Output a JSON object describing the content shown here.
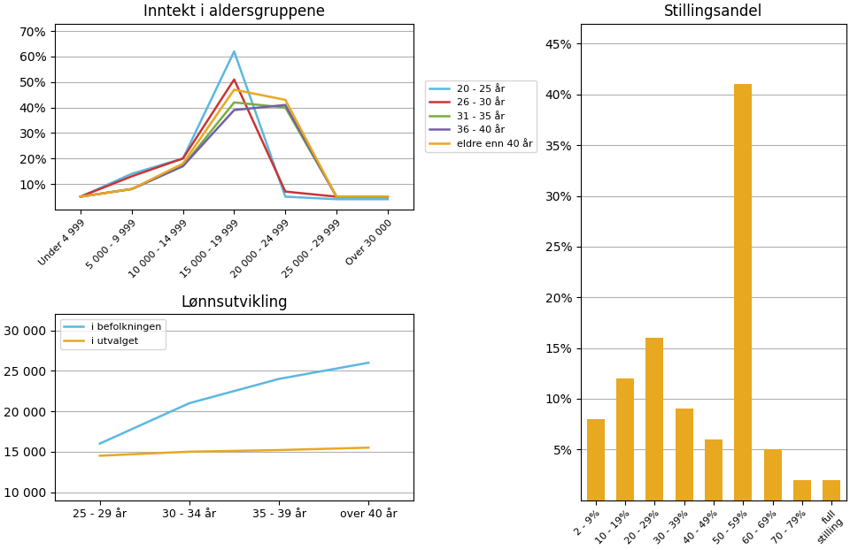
{
  "chart_data": [
    {
      "type": "line",
      "title": "Inntekt i aldersgruppene",
      "categories": [
        "Under 4 999",
        "5 000 - 9 999",
        "10 000 - 14 999",
        "15 000 - 19 999",
        "20 000 - 24 999",
        "25 000 - 29 999",
        "Over 30 000"
      ],
      "series": [
        {
          "name": "20 - 25 år",
          "color": "#5BB8E0",
          "values": [
            5,
            14,
            20,
            62,
            5,
            4,
            4
          ]
        },
        {
          "name": "26 - 30 år",
          "color": "#CC3333",
          "values": [
            5,
            13,
            20,
            51,
            7,
            5,
            5
          ]
        },
        {
          "name": "31 - 35 år",
          "color": "#7AAD3C",
          "values": [
            5,
            8,
            17,
            42,
            40,
            5,
            5
          ]
        },
        {
          "name": "36 - 40 år",
          "color": "#7060A8",
          "values": [
            5,
            8,
            17,
            39,
            41,
            5,
            5
          ]
        },
        {
          "name": "eldre enn 40 år",
          "color": "#E8A820",
          "values": [
            5,
            8,
            18,
            47,
            43,
            5,
            5
          ]
        }
      ],
      "ylim": [
        0,
        73
      ],
      "yticks": [
        {
          "value": 10,
          "label": "10%"
        },
        {
          "value": 20,
          "label": "20%"
        },
        {
          "value": 30,
          "label": "30%"
        },
        {
          "value": 40,
          "label": "40%"
        },
        {
          "value": 50,
          "label": "50%"
        },
        {
          "value": 60,
          "label": "60%"
        },
        {
          "value": 70,
          "label": "70%"
        }
      ],
      "grid": true,
      "legend": "center left"
    },
    {
      "type": "line",
      "title": "Lønnsutvikling",
      "categories": [
        "25 - 29 år",
        "30 - 34 år",
        "35 - 39 år",
        "over 40 år"
      ],
      "series": [
        {
          "name": "i befolkningen",
          "color": "#5BB8E0",
          "values": [
            16000,
            21000,
            24000,
            26000
          ]
        },
        {
          "name": "i utvalget",
          "color": "#E8A820",
          "values": [
            14500,
            15000,
            15200,
            15500
          ]
        }
      ],
      "ylim": [
        9000,
        32000
      ],
      "yticks": [
        {
          "value": 10000,
          "label": "10 000"
        },
        {
          "value": 15000,
          "label": "15 000"
        },
        {
          "value": 20000,
          "label": "20 000"
        },
        {
          "value": 25000,
          "label": "25 000"
        },
        {
          "value": 30000,
          "label": "30 000"
        }
      ],
      "grid": true,
      "legend": "upper left"
    },
    {
      "type": "bar",
      "title": "Stillingsandel",
      "categories": [
        "2 - 9%",
        "10 - 19%",
        "20 - 29%",
        "30 - 39%",
        "40 - 49%",
        "50 - 59%",
        "60 - 69%",
        "70 - 79%",
        "full\nstilling"
      ],
      "values": [
        8,
        12,
        16,
        9,
        6,
        41,
        5,
        2,
        2
      ],
      "color": "#E8A820",
      "ylim": [
        0,
        47
      ],
      "yticks": [
        {
          "value": 5,
          "label": "5%"
        },
        {
          "value": 10,
          "label": "10%"
        },
        {
          "value": 15,
          "label": "15%"
        },
        {
          "value": 20,
          "label": "20%"
        },
        {
          "value": 25,
          "label": "25%"
        },
        {
          "value": 30,
          "label": "30%"
        },
        {
          "value": 35,
          "label": "35%"
        },
        {
          "value": 40,
          "label": "40%"
        },
        {
          "value": 45,
          "label": "45%"
        }
      ],
      "grid": true
    }
  ]
}
